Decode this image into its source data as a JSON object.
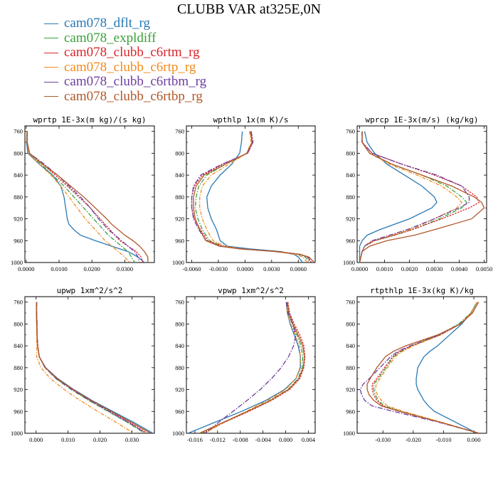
{
  "title": "CLUBB VAR at325E,0N",
  "legend": [
    {
      "label": "cam078_dflt_rg",
      "color": "#2a7ab5",
      "dash": ""
    },
    {
      "label": "cam078_expldiff",
      "color": "#3aa23a",
      "dash": "6,2,1.5,2"
    },
    {
      "label": "cam078_clubb_c6rtm_rg",
      "color": "#d8262b",
      "dash": "2.5,1.5"
    },
    {
      "label": "cam078_clubb_c6rtp_rg",
      "color": "#f38a1e",
      "dash": "5,2,1.5,2"
    },
    {
      "label": "cam078_clubb_c6rtbm_rg",
      "color": "#6d3fa0",
      "dash": "7,2,1.5,2"
    },
    {
      "label": "cam078_clubb_c6rtbp_rg",
      "color": "#b0582a",
      "dash": ""
    }
  ],
  "chart_data": [
    {
      "type": "line",
      "title": "wprtp  1E-3x(m kg)/(s kg)",
      "xlim": [
        -0.0004,
        0.039
      ],
      "xticks": [
        0,
        0.01,
        0.02,
        0.03
      ],
      "xtick_labels": [
        "0.0000",
        "0.0100",
        "0.0200",
        "0.0300"
      ],
      "ylim": [
        1000,
        750
      ],
      "yticks": [
        760,
        800,
        840,
        880,
        920,
        960,
        1000
      ],
      "pressure": [
        760,
        780,
        800,
        820,
        840,
        860,
        880,
        900,
        920,
        930,
        940,
        950,
        960,
        970,
        980,
        990,
        1000
      ],
      "series": [
        {
          "name": "cam078_dflt_rg",
          "values": [
            0.0002,
            0.0001,
            0.0005,
            0.004,
            0.008,
            0.0105,
            0.0115,
            0.012,
            0.0125,
            0.013,
            0.0145,
            0.0165,
            0.021,
            0.026,
            0.031,
            0.034,
            0.036
          ]
        },
        {
          "name": "cam078_expldiff",
          "values": [
            0.0002,
            0.0002,
            0.001,
            0.0045,
            0.008,
            0.0115,
            0.0145,
            0.0175,
            0.0205,
            0.022,
            0.0235,
            0.025,
            0.027,
            0.029,
            0.031,
            0.032,
            0.033
          ]
        },
        {
          "name": "cam078_clubb_c6rtm_rg",
          "values": [
            0.0003,
            0.0003,
            0.001,
            0.005,
            0.0088,
            0.0125,
            0.016,
            0.0195,
            0.0225,
            0.024,
            0.0255,
            0.027,
            0.0285,
            0.031,
            0.0335,
            0.035,
            0.0355
          ]
        },
        {
          "name": "cam078_clubb_c6rtp_rg",
          "values": [
            0.0002,
            0.0002,
            0.0008,
            0.004,
            0.0075,
            0.0105,
            0.013,
            0.0155,
            0.018,
            0.0195,
            0.021,
            0.0225,
            0.024,
            0.026,
            0.028,
            0.03,
            0.0315
          ]
        },
        {
          "name": "cam078_clubb_c6rtbm_rg",
          "values": [
            0.0003,
            0.0003,
            0.001,
            0.0055,
            0.0095,
            0.013,
            0.0165,
            0.0195,
            0.022,
            0.0235,
            0.025,
            0.027,
            0.029,
            0.031,
            0.033,
            0.034,
            0.0345
          ]
        },
        {
          "name": "cam078_clubb_c6rtbp_rg",
          "values": [
            0.0003,
            0.0003,
            0.001,
            0.005,
            0.0095,
            0.0135,
            0.0175,
            0.021,
            0.0245,
            0.026,
            0.028,
            0.03,
            0.0325,
            0.0345,
            0.036,
            0.037,
            0.037
          ]
        }
      ]
    },
    {
      "type": "line",
      "title": "wpthlp  1x(m K)/s",
      "xlim": [
        -0.0066,
        0.0079
      ],
      "xticks": [
        -0.006,
        -0.003,
        0,
        0.003,
        0.006
      ],
      "xtick_labels": [
        "-0.0060",
        "-0.0030",
        "0.0000",
        "0.0030",
        "0.0060"
      ],
      "ylim": [
        1000,
        750
      ],
      "yticks": [
        760,
        800,
        840,
        880,
        920,
        960,
        1000
      ],
      "pressure": [
        760,
        780,
        800,
        820,
        840,
        860,
        880,
        900,
        920,
        940,
        960,
        970,
        975,
        980,
        985,
        990,
        1000
      ],
      "series": [
        {
          "name": "cam078_dflt_rg",
          "values": [
            -0.0003,
            -0.0004,
            -0.0006,
            -0.0015,
            -0.0028,
            -0.0038,
            -0.0043,
            -0.0042,
            -0.0038,
            -0.0032,
            -0.0028,
            -0.002,
            0.0005,
            0.004,
            0.0055,
            0.006,
            0.0065
          ]
        },
        {
          "name": "cam078_expldiff",
          "values": [
            0.0006,
            0.0008,
            0.0002,
            -0.0022,
            -0.0043,
            -0.0052,
            -0.0055,
            -0.0056,
            -0.0053,
            -0.0048,
            -0.004,
            -0.0025,
            -0.0005,
            0.0035,
            0.006,
            0.0068,
            0.0072
          ]
        },
        {
          "name": "cam078_clubb_c6rtm_rg",
          "values": [
            0.0007,
            0.0009,
            0.0003,
            -0.0025,
            -0.0048,
            -0.0057,
            -0.006,
            -0.006,
            -0.0057,
            -0.005,
            -0.0042,
            -0.0026,
            -0.0005,
            0.0036,
            0.0062,
            0.007,
            0.0074
          ]
        },
        {
          "name": "cam078_clubb_c6rtp_rg",
          "values": [
            0.0005,
            0.0007,
            0.0002,
            -0.0018,
            -0.0038,
            -0.0048,
            -0.0051,
            -0.0051,
            -0.0048,
            -0.0043,
            -0.0036,
            -0.0022,
            -0.0003,
            0.0033,
            0.0057,
            0.0065,
            0.007
          ]
        },
        {
          "name": "cam078_clubb_c6rtbm_rg",
          "values": [
            0.0007,
            0.0009,
            0.0003,
            -0.0026,
            -0.005,
            -0.0058,
            -0.006,
            -0.006,
            -0.0058,
            -0.0052,
            -0.0044,
            -0.0028,
            -0.0006,
            0.0036,
            0.0062,
            0.0071,
            0.0075
          ]
        },
        {
          "name": "cam078_clubb_c6rtbp_rg",
          "values": [
            0.0006,
            0.0008,
            0.0002,
            -0.0022,
            -0.0046,
            -0.0055,
            -0.0058,
            -0.0058,
            -0.0056,
            -0.0051,
            -0.0044,
            -0.0029,
            -0.0006,
            0.0035,
            0.0062,
            0.0072,
            0.0078
          ]
        }
      ]
    },
    {
      "type": "line",
      "title": "wprcp  1E-3x(m/s) (kg/kg)",
      "xlim": [
        -0.0001,
        0.0051
      ],
      "xticks": [
        0,
        0.001,
        0.002,
        0.003,
        0.004,
        0.005
      ],
      "xtick_labels": [
        "0.0000",
        "0.0010",
        "0.0020",
        "0.0030",
        "0.0040",
        "0.0050"
      ],
      "ylim": [
        1000,
        750
      ],
      "yticks": [
        760,
        800,
        840,
        880,
        920,
        960,
        1000
      ],
      "pressure": [
        760,
        780,
        800,
        820,
        840,
        860,
        880,
        890,
        900,
        920,
        940,
        950,
        960,
        970,
        980,
        1000
      ],
      "series": [
        {
          "name": "cam078_dflt_rg",
          "values": [
            0.0002,
            0.0003,
            0.0006,
            0.0011,
            0.0018,
            0.0025,
            0.003,
            0.0031,
            0.0029,
            0.002,
            0.0008,
            0.0003,
            0.0001,
            0.0,
            0.0,
            0.0
          ]
        },
        {
          "name": "cam078_expldiff",
          "values": [
            0.0001,
            0.0001,
            0.0004,
            0.0013,
            0.0025,
            0.0035,
            0.0041,
            0.0043,
            0.0041,
            0.0032,
            0.0021,
            0.0014,
            0.0006,
            0.0002,
            0.0001,
            0.0
          ]
        },
        {
          "name": "cam078_clubb_c6rtm_rg",
          "values": [
            0.0001,
            0.0001,
            0.0005,
            0.0017,
            0.003,
            0.0041,
            0.0047,
            0.0048,
            0.0044,
            0.0033,
            0.0021,
            0.0014,
            0.0006,
            0.0002,
            0.0001,
            0.0
          ]
        },
        {
          "name": "cam078_clubb_c6rtp_rg",
          "values": [
            0.0001,
            0.0001,
            0.0004,
            0.0012,
            0.0023,
            0.0033,
            0.0039,
            0.0041,
            0.0039,
            0.003,
            0.002,
            0.0013,
            0.0005,
            0.0002,
            0.0001,
            0.0
          ]
        },
        {
          "name": "cam078_clubb_c6rtbm_rg",
          "values": [
            0.0001,
            0.0001,
            0.0005,
            0.0017,
            0.0031,
            0.0041,
            0.0044,
            0.0044,
            0.004,
            0.003,
            0.0019,
            0.0012,
            0.0005,
            0.0002,
            0.0001,
            0.0
          ]
        },
        {
          "name": "cam078_clubb_c6rtbp_rg",
          "values": [
            0.0001,
            0.0001,
            0.0004,
            0.0013,
            0.0025,
            0.0037,
            0.0046,
            0.0049,
            0.005,
            0.0045,
            0.003,
            0.0022,
            0.0011,
            0.0004,
            0.0001,
            0.0
          ]
        }
      ]
    },
    {
      "type": "line",
      "title": "upwp  1xm^2/s^2",
      "xlim": [
        -0.0035,
        0.037
      ],
      "xticks": [
        0,
        0.01,
        0.02,
        0.03
      ],
      "xtick_labels": [
        "0.000",
        "0.010",
        "0.020",
        "0.030"
      ],
      "ylim": [
        1000,
        750
      ],
      "yticks": [
        760,
        800,
        840,
        880,
        920,
        960,
        1000
      ],
      "pressure": [
        760,
        780,
        800,
        820,
        840,
        860,
        880,
        900,
        920,
        940,
        960,
        980,
        1000
      ],
      "series": [
        {
          "name": "cam078_dflt_rg",
          "values": [
            0.0001,
            0.0001,
            0.0002,
            0.0003,
            0.0005,
            0.001,
            0.003,
            0.0068,
            0.0118,
            0.0175,
            0.024,
            0.0305,
            0.0365
          ]
        },
        {
          "name": "cam078_expldiff",
          "values": [
            0.0001,
            0.0001,
            0.0002,
            0.0003,
            0.0005,
            0.001,
            0.0028,
            0.0062,
            0.011,
            0.0165,
            0.0225,
            0.0285,
            0.034
          ]
        },
        {
          "name": "cam078_clubb_c6rtm_rg",
          "values": [
            0.0002,
            0.0002,
            0.0003,
            0.0003,
            0.0005,
            0.001,
            0.0028,
            0.0065,
            0.0115,
            0.017,
            0.0232,
            0.0292,
            0.0348
          ]
        },
        {
          "name": "cam078_clubb_c6rtp_rg",
          "values": [
            0.0001,
            0.0001,
            0.0002,
            0.0002,
            0.0002,
            0.0002,
            0.0015,
            0.0045,
            0.0088,
            0.0138,
            0.0193,
            0.025,
            0.0305
          ]
        },
        {
          "name": "cam078_clubb_c6rtbm_rg",
          "values": [
            0.0002,
            0.0002,
            0.0003,
            0.0003,
            0.0005,
            0.001,
            0.0028,
            0.0063,
            0.0112,
            0.0168,
            0.0228,
            0.0288,
            0.0343
          ]
        },
        {
          "name": "cam078_clubb_c6rtbp_rg",
          "values": [
            0.0001,
            0.0001,
            0.0002,
            0.0003,
            0.0005,
            0.001,
            0.0029,
            0.0066,
            0.0116,
            0.0172,
            0.0235,
            0.0298,
            0.0358
          ]
        }
      ]
    },
    {
      "type": "line",
      "title": "vpwp  1xm^2/s^2",
      "xlim": [
        -0.0175,
        0.0052
      ],
      "xticks": [
        -0.016,
        -0.012,
        -0.008,
        -0.004,
        0,
        0.004
      ],
      "xtick_labels": [
        "-0.016",
        "-0.012",
        "-0.008",
        "-0.004",
        "0.000",
        "0.004"
      ],
      "ylim": [
        1000,
        750
      ],
      "yticks": [
        760,
        800,
        840,
        880,
        920,
        960,
        1000
      ],
      "pressure": [
        760,
        780,
        800,
        820,
        840,
        860,
        880,
        900,
        920,
        940,
        960,
        980,
        1000
      ],
      "series": [
        {
          "name": "cam078_dflt_rg",
          "values": [
            0.0001,
            0.0003,
            0.0008,
            0.0015,
            0.0022,
            0.0026,
            0.0026,
            0.0018,
            -0.0002,
            -0.0035,
            -0.0078,
            -0.0125,
            -0.0172
          ]
        },
        {
          "name": "cam078_expldiff",
          "values": [
            0.0002,
            0.0005,
            0.0012,
            0.002,
            0.0027,
            0.003,
            0.0029,
            0.0022,
            0.0004,
            -0.0028,
            -0.0068,
            -0.011,
            -0.0148
          ]
        },
        {
          "name": "cam078_clubb_c6rtm_rg",
          "values": [
            0.0004,
            0.0007,
            0.0015,
            0.0025,
            0.0032,
            0.0034,
            0.0032,
            0.0025,
            0.0007,
            -0.0025,
            -0.0065,
            -0.0108,
            -0.0146
          ]
        },
        {
          "name": "cam078_clubb_c6rtp_rg",
          "values": [
            0.0001,
            0.0003,
            0.0009,
            0.0017,
            0.0024,
            0.0026,
            0.0025,
            0.0018,
            0.0,
            -0.0032,
            -0.007,
            -0.0108,
            -0.0143
          ]
        },
        {
          "name": "cam078_clubb_c6rtbm_rg",
          "values": [
            0.0001,
            0.0004,
            0.0012,
            0.0018,
            0.0014,
            0.0005,
            -0.0008,
            -0.0025,
            -0.0045,
            -0.0068,
            -0.0093,
            -0.0118,
            -0.0142
          ]
        },
        {
          "name": "cam078_clubb_c6rtbp_rg",
          "values": [
            0.0003,
            0.0006,
            0.0013,
            0.0022,
            0.003,
            0.0033,
            0.0031,
            0.0023,
            0.0005,
            -0.0027,
            -0.0067,
            -0.011,
            -0.0152
          ]
        }
      ]
    },
    {
      "type": "line",
      "title": "rtpthlp  1E-3x(kg K)/kg",
      "xlim": [
        -0.0385,
        0.0042
      ],
      "xticks": [
        -0.03,
        -0.02,
        -0.01,
        0
      ],
      "xtick_labels": [
        "-0.030",
        "-0.020",
        "-0.010",
        "0.000"
      ],
      "ylim": [
        1000,
        750
      ],
      "yticks": [
        760,
        800,
        840,
        880,
        920,
        960,
        1000
      ],
      "pressure": [
        760,
        780,
        800,
        820,
        840,
        850,
        860,
        880,
        900,
        910,
        920,
        930,
        940,
        950,
        960,
        980,
        1000
      ],
      "series": [
        {
          "name": "cam078_dflt_rg",
          "values": [
            0.001,
            -0.001,
            -0.004,
            -0.008,
            -0.012,
            -0.0145,
            -0.0165,
            -0.0185,
            -0.019,
            -0.019,
            -0.0185,
            -0.0175,
            -0.0165,
            -0.015,
            -0.013,
            -0.006,
            0.001
          ]
        },
        {
          "name": "cam078_expldiff",
          "values": [
            0.001,
            -0.001,
            -0.005,
            -0.0115,
            -0.0205,
            -0.024,
            -0.0265,
            -0.029,
            -0.0315,
            -0.033,
            -0.033,
            -0.0325,
            -0.0315,
            -0.0295,
            -0.024,
            -0.011,
            0.0015
          ]
        },
        {
          "name": "cam078_clubb_c6rtm_rg",
          "values": [
            0.0015,
            -0.0005,
            -0.0045,
            -0.011,
            -0.0205,
            -0.0245,
            -0.0268,
            -0.0295,
            -0.032,
            -0.0335,
            -0.0335,
            -0.033,
            -0.032,
            -0.03,
            -0.0245,
            -0.011,
            0.0018
          ]
        },
        {
          "name": "cam078_clubb_c6rtp_rg",
          "values": [
            0.001,
            -0.001,
            -0.0045,
            -0.011,
            -0.02,
            -0.0235,
            -0.026,
            -0.0285,
            -0.031,
            -0.0322,
            -0.0325,
            -0.0318,
            -0.0305,
            -0.0285,
            -0.0232,
            -0.0105,
            0.0015
          ]
        },
        {
          "name": "cam078_clubb_c6rtbm_rg",
          "values": [
            0.0015,
            -0.0005,
            -0.0045,
            -0.0115,
            -0.021,
            -0.025,
            -0.0275,
            -0.031,
            -0.0345,
            -0.0365,
            -0.0375,
            -0.037,
            -0.036,
            -0.0335,
            -0.0265,
            -0.0115,
            0.0018
          ]
        },
        {
          "name": "cam078_clubb_c6rtbp_rg",
          "values": [
            0.0015,
            -0.0005,
            -0.0045,
            -0.012,
            -0.0225,
            -0.0265,
            -0.0292,
            -0.032,
            -0.0342,
            -0.0352,
            -0.0352,
            -0.0345,
            -0.033,
            -0.0305,
            -0.0245,
            -0.011,
            0.0018
          ]
        }
      ]
    }
  ]
}
